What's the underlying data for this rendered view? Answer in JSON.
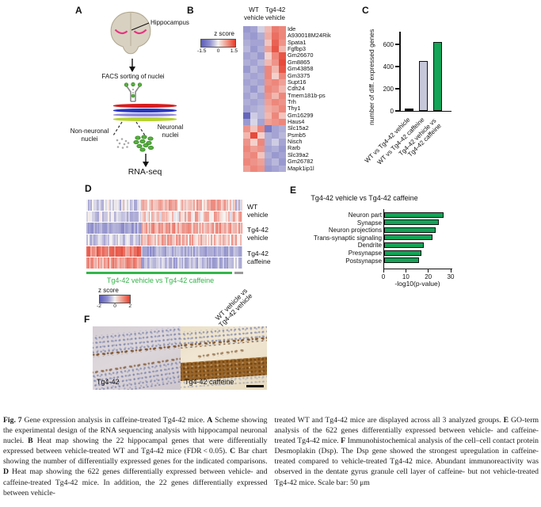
{
  "figure_labels": {
    "a": "A",
    "b": "B",
    "c": "C",
    "d": "D",
    "e": "E",
    "f": "F"
  },
  "panel_a": {
    "hippocampus": "Hippocampus",
    "facs": "FACS sorting of nuclei",
    "non_neuronal": "Non-neuronal\nnuclei",
    "neuronal": "Neuronal\nnuclei",
    "rnaseq": "RNA-seq"
  },
  "panel_f": {
    "left_label": "Tg4-42",
    "right_label": "Tg4-42 caffeine"
  },
  "colors": {
    "green_bar": "#14a357",
    "gray_bar": "#c6c7d9",
    "black_bar": "#1b1b1b",
    "heat_red": "#e63e2d",
    "heat_blue": "#5c5cb8",
    "green_underline": "#35b44a",
    "gray_underline": "#9a9a9a"
  },
  "chart_data": [
    {
      "id": "panel_b_heatmap",
      "type": "heatmap",
      "col_headers": [
        "WT\nvehicle",
        "Tg4-42\nvehicle"
      ],
      "rows": [
        "Ide",
        "A930018M24Rik",
        "Spata1",
        "Fgfbp3",
        "Gm26670",
        "Gm8865",
        "Gm43858",
        "Gm3375",
        "Supt16",
        "Cdh24",
        "Tmem181b-ps",
        "Trh",
        "Thy1",
        "Gm16299",
        "Haus4",
        "Slc15a2",
        "Psmb5",
        "Nisch",
        "Rarb",
        "Slc39a2",
        "Gm26782",
        "Mapk1ip1l"
      ],
      "values": [
        [
          -0.9,
          -0.8,
          -0.35,
          0.5,
          1.0,
          0.9
        ],
        [
          -0.8,
          -0.9,
          -0.7,
          0.6,
          1.1,
          0.9
        ],
        [
          -0.7,
          -0.8,
          -0.8,
          0.4,
          1.2,
          0.8
        ],
        [
          -0.6,
          -0.9,
          -0.7,
          0.7,
          1.3,
          0.5
        ],
        [
          -0.8,
          -0.7,
          -0.9,
          0.3,
          0.9,
          1.3
        ],
        [
          -0.7,
          -0.8,
          -0.6,
          0.5,
          0.8,
          1.4
        ],
        [
          -0.9,
          -0.6,
          -0.8,
          0.9,
          0.5,
          1.3
        ],
        [
          -0.7,
          -0.8,
          -0.7,
          0.9,
          0.3,
          0.9
        ],
        [
          -0.8,
          -0.7,
          -0.8,
          0.8,
          0.9,
          0.7
        ],
        [
          -0.7,
          -0.9,
          -0.6,
          0.9,
          0.8,
          0.5
        ],
        [
          -0.8,
          -0.6,
          -0.8,
          0.8,
          0.5,
          0.9
        ],
        [
          -0.7,
          -0.8,
          -0.7,
          0.7,
          0.9,
          0.8
        ],
        [
          -0.8,
          -0.7,
          -0.6,
          0.6,
          0.7,
          0.9
        ],
        [
          -1.4,
          -0.4,
          -0.6,
          0.5,
          0.9,
          0.4
        ],
        [
          -0.9,
          -0.3,
          -0.8,
          0.7,
          0.8,
          0.9
        ],
        [
          0.8,
          0.4,
          0.9,
          -1.2,
          -0.8,
          -0.7
        ],
        [
          0.5,
          1.4,
          0.3,
          -0.7,
          -0.8,
          -0.6
        ],
        [
          0.8,
          0.3,
          0.9,
          -0.7,
          -0.4,
          -0.8
        ],
        [
          0.9,
          0.7,
          0.8,
          -0.8,
          -0.7,
          -0.9
        ],
        [
          0.8,
          0.9,
          0.4,
          -0.7,
          -0.9,
          -0.8
        ],
        [
          0.9,
          0.8,
          0.7,
          -0.8,
          -0.6,
          -0.9
        ],
        [
          0.7,
          0.9,
          0.8,
          -0.9,
          -0.8,
          -0.7
        ]
      ],
      "colorbar": {
        "label": "z score",
        "ticks": [
          "-1.5",
          "0",
          "1.5"
        ],
        "min": -1.5,
        "max": 1.5
      }
    },
    {
      "id": "panel_c_bar",
      "type": "bar",
      "categories": [
        "WT vs Tg4-42 vehicle",
        "WT vs Tg4-42 caffeine",
        "Tg4-42 vehicle vs\nTg4-42 caffeine"
      ],
      "values": [
        22,
        450,
        622
      ],
      "bar_colors": [
        "#1b1b1b",
        "#c6c7d9",
        "#14a357"
      ],
      "ylabel": "number of diff. expressed genes",
      "yticks": [
        0,
        200,
        400,
        600
      ],
      "ylim": [
        0,
        600
      ]
    },
    {
      "id": "panel_d_heatmap",
      "type": "heatmap",
      "row_labels": [
        "WT\nvehicle",
        "Tg4-42\nvehicle",
        "Tg4-42\ncaffeine"
      ],
      "green_label": "Tg4-42 vehicle vs Tg4-42 caffeine",
      "gray_label": "WT vehicle vs\nTg4-42 vehicle",
      "colorbar": {
        "label": "z score",
        "ticks": [
          "-2",
          "0",
          "2"
        ],
        "min": -2,
        "max": 2
      },
      "n_genes_green": 622,
      "n_genes_gray": 22,
      "row_segments": [
        [
          {
            "n": 38,
            "m": -0.35,
            "s": 0.55
          },
          {
            "n": 62,
            "m": 0.55,
            "s": 0.5
          },
          {
            "n": 8,
            "m": -0.2,
            "s": 0.7
          }
        ],
        [
          {
            "n": 38,
            "m": -0.45,
            "s": 0.5
          },
          {
            "n": 62,
            "m": 0.35,
            "s": 0.6
          },
          {
            "n": 8,
            "m": 0.3,
            "s": 0.8
          }
        ],
        [
          {
            "n": 38,
            "m": -1.0,
            "s": 0.35
          },
          {
            "n": 62,
            "m": 0.85,
            "s": 0.45
          },
          {
            "n": 8,
            "m": 0.6,
            "s": 0.5
          }
        ],
        [
          {
            "n": 38,
            "m": -0.55,
            "s": 0.45
          },
          {
            "n": 62,
            "m": 0.55,
            "s": 0.5
          },
          {
            "n": 8,
            "m": 0.4,
            "s": 0.6
          }
        ],
        [
          {
            "n": 38,
            "m": 1.3,
            "s": 0.45
          },
          {
            "n": 62,
            "m": -0.95,
            "s": 0.35
          },
          {
            "n": 8,
            "m": -0.7,
            "s": 0.4
          }
        ],
        [
          {
            "n": 38,
            "m": 0.85,
            "s": 0.5
          },
          {
            "n": 62,
            "m": -0.75,
            "s": 0.4
          },
          {
            "n": 8,
            "m": -0.5,
            "s": 0.5
          }
        ]
      ]
    },
    {
      "id": "panel_e_bar",
      "type": "bar",
      "orientation": "horizontal",
      "title": "Tg4-42 vehicle vs Tg4-42 caffeine",
      "categories": [
        "Neuron part",
        "Synapse",
        "Neuron projections",
        "Trans-synaptic signaling",
        "Dendrite",
        "Presynapse",
        "Postsynapse"
      ],
      "values": [
        26.5,
        24.5,
        23,
        21.5,
        17.5,
        16.5,
        15.5
      ],
      "xlabel": "-log10(p-value)",
      "xticks": [
        0,
        10,
        20,
        30
      ],
      "xlim": [
        0,
        30
      ],
      "bar_color": "#14a357"
    }
  ],
  "caption": {
    "left": [
      {
        "b": true,
        "t": "Fig. 7"
      },
      {
        "t": " Gene expression analysis in caffeine-treated Tg4-42 mice. "
      },
      {
        "b": true,
        "t": "A"
      },
      {
        "t": " Scheme showing the experimental design of the RNA sequencing analysis with hippocampal neuronal nuclei. "
      },
      {
        "b": true,
        "t": "B"
      },
      {
        "t": " Heat map showing the 22 hippocampal genes that were differentially expressed between vehicle-treated WT and Tg4-42 mice (FDR < 0.05). "
      },
      {
        "b": true,
        "t": "C"
      },
      {
        "t": " Bar chart showing the number of differentially expressed genes for the indicated comparisons. "
      },
      {
        "b": true,
        "t": "D"
      },
      {
        "t": " Heat map showing the 622 genes differentially expressed between vehicle- and caffeine-treated Tg4-42 mice. In addition, the 22 genes differentially expressed between vehicle-"
      }
    ],
    "right": [
      {
        "t": "treated WT and Tg4-42 mice are displayed across all 3 analyzed groups. "
      },
      {
        "b": true,
        "t": "E"
      },
      {
        "t": " GO-term analysis of the 622 genes differentially expressed between vehicle- and caffeine-treated Tg4-42 mice. "
      },
      {
        "b": true,
        "t": "F"
      },
      {
        "t": " Immunohistochemical analysis of the cell–cell contact protein Desmoplakin (Dsp). The Dsp gene showed the strongest upregulation in caffeine-treated compared to vehicle-treated Tg4-42 mice. Abundant immunoreactivity was observed in the dentate gyrus granule cell layer of caffeine- but not vehicle-treated Tg4-42 mice. Scale bar: 50 μm"
      }
    ]
  }
}
